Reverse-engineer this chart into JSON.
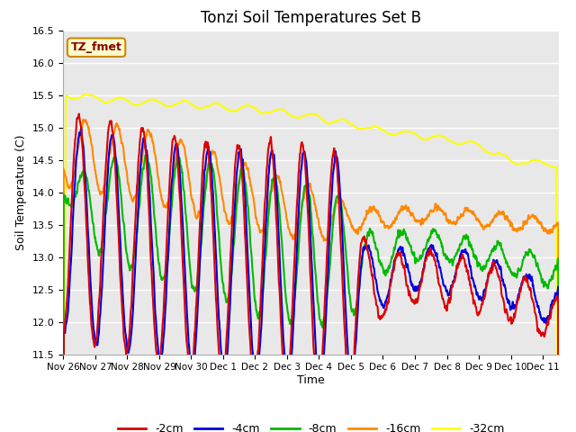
{
  "title": "Tonzi Soil Temperatures Set B",
  "xlabel": "Time",
  "ylabel": "Soil Temperature (C)",
  "ylim": [
    11.5,
    16.5
  ],
  "yticks": [
    11.5,
    12.0,
    12.5,
    13.0,
    13.5,
    14.0,
    14.5,
    15.0,
    15.5,
    16.0,
    16.5
  ],
  "colors": {
    "-2cm": "#dd0000",
    "-4cm": "#0000dd",
    "-8cm": "#00bb00",
    "-16cm": "#ff8800",
    "-32cm": "#ffff00"
  },
  "legend_label": "TZ_fmet",
  "legend_box_color": "#ffffcc",
  "legend_box_border": "#cc8800",
  "background_color": "#e8e8e8",
  "grid_color": "#ffffff",
  "title_fontsize": 12,
  "axis_fontsize": 9,
  "tick_fontsize": 8,
  "x_tick_labels": [
    "Nov 26",
    "Nov 27",
    "Nov 28",
    "Nov 29",
    "Nov 30",
    "Dec 1",
    "Dec 2",
    "Dec 3",
    "Dec 4",
    "Dec 5",
    "Dec 6",
    "Dec 7",
    "Dec 8",
    "Dec 9",
    "Dec 10",
    "Dec 11"
  ],
  "n_days": 15.5,
  "points_per_day": 96
}
